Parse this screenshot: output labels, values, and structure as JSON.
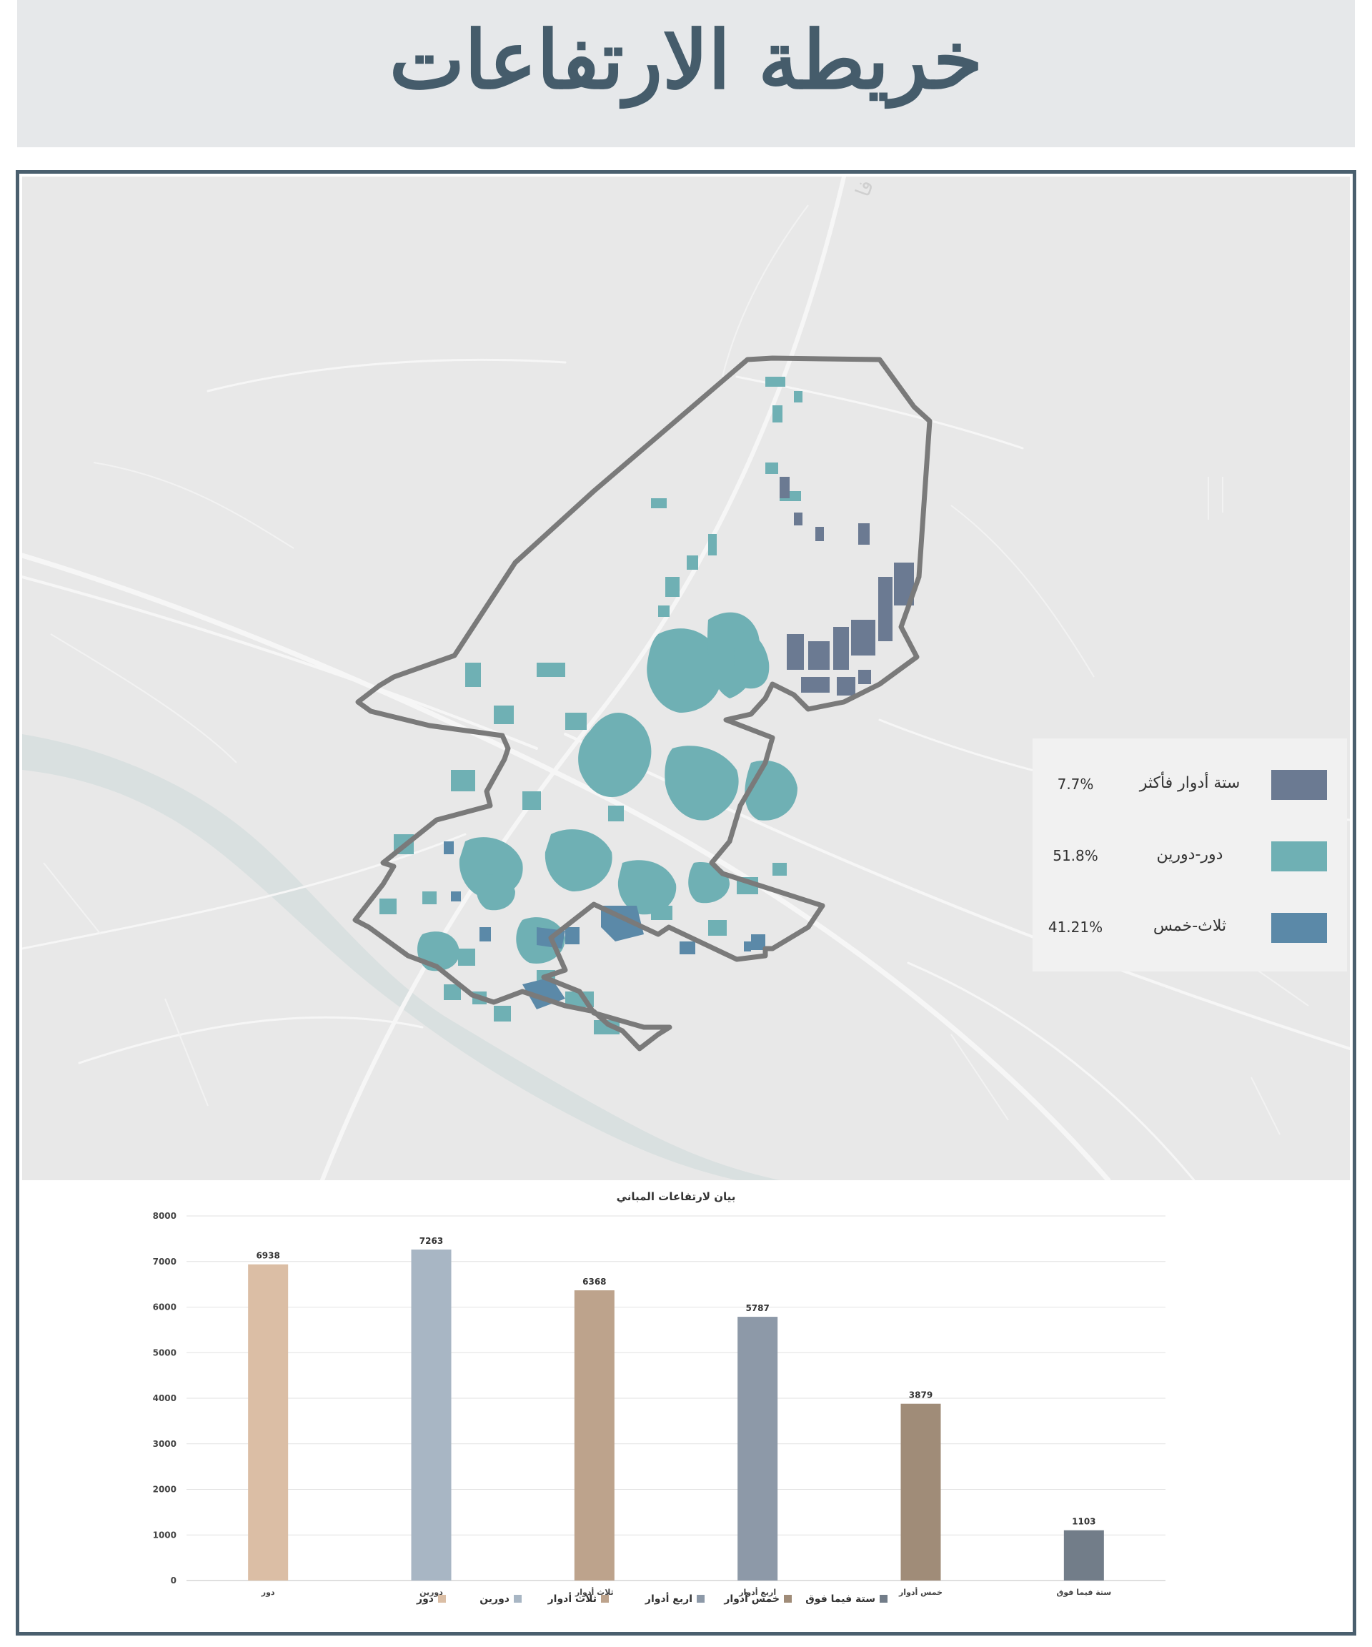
{
  "title": "خريطة الارتفاعات",
  "colors": {
    "banner_bg": "#e6e8ea",
    "title_text": "#455c6b",
    "frame_border": "#4a5f6e",
    "map_bg": "#e8e8e8",
    "river": "#d9e0e0",
    "boundary": "#7a7a7a",
    "cat_six_plus": "#6b7a92",
    "cat_one_two": "#6fb0b4",
    "cat_three_five": "#5b89a8"
  },
  "map": {
    "place_label": "فا",
    "legend": [
      {
        "label": "ستة أدوار فأكثر",
        "percent": "7.7%",
        "color": "#6b7a92"
      },
      {
        "label": "دور-دورين",
        "percent": "51.8%",
        "color": "#6fb0b4"
      },
      {
        "label": "ثلاث-خمس",
        "percent": "41.21%",
        "color": "#5b89a8"
      }
    ]
  },
  "chart_data": {
    "type": "bar",
    "title": "بيان لارتفاعات المباني",
    "categories": [
      "دور",
      "دورين",
      "ثلاث أدوار",
      "اربع أدوار",
      "خمس أدوار",
      "ستة فيما فوق"
    ],
    "values": [
      6938,
      7263,
      6368,
      5787,
      3879,
      1103
    ],
    "colors": [
      "#dbbea5",
      "#a8b6c4",
      "#bda38c",
      "#8d99a8",
      "#a08c78",
      "#727d89"
    ],
    "legend_labels": [
      "دور",
      "دورين",
      "ثلاث أدوار",
      "اربع أدوار",
      "خمس أدوار",
      "ستة فيما فوق"
    ],
    "legend_position": "bottom",
    "ylim": [
      0,
      8000
    ],
    "yticks": [
      0,
      1000,
      2000,
      3000,
      4000,
      5000,
      6000,
      7000,
      8000
    ],
    "grid": true,
    "data_labels": true
  }
}
